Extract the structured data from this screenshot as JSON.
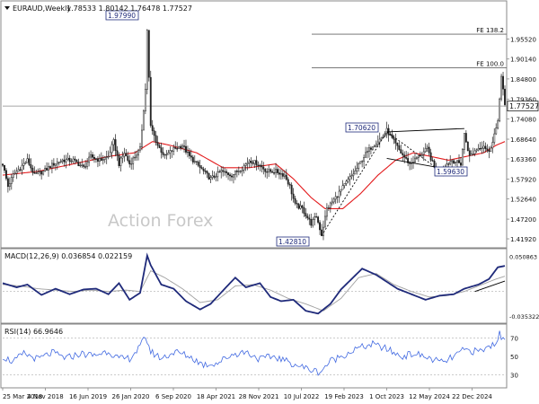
{
  "colors": {
    "background": "#ffffff",
    "frame": "#888888",
    "candle": "#222222",
    "ma": "#e31a1c",
    "macd": "#1f2a7a",
    "signal": "#a0a0a0",
    "rsi": "#4169e1",
    "dotted": "#bcbcbc",
    "trend": "#000000",
    "text": "#111111",
    "watermark": "#c8c8c8"
  },
  "chart_data": [
    {
      "type": "candlestick",
      "title": "EURAUD,Weekly",
      "ohlc_label": "1.78533 1.80142 1.76478 1.77527",
      "watermark": "Action Forex",
      "ylim": [
        1.4,
        2.05
      ],
      "y_ticks": [
        "1.95520",
        "1.90140",
        "1.84800",
        "1.79360",
        "1.74080",
        "1.68640",
        "1.63360",
        "1.57920",
        "1.52640",
        "1.47200",
        "1.41920"
      ],
      "x_ticks": [
        "25 Mar 2018",
        "4 Nov 2018",
        "16 Jun 2019",
        "26 Jan 2020",
        "6 Sep 2020",
        "18 Apr 2021",
        "28 Nov 2021",
        "10 Jul 2022",
        "19 Feb 2023",
        "1 Oct 2023",
        "12 May 2024",
        "22 Dec 2024"
      ],
      "last_price": "1.77527",
      "levels": [
        {
          "label": "FE 138.2",
          "value": 1.968
        },
        {
          "label": "FE 100.0",
          "value": 1.878
        }
      ],
      "annotations": [
        {
          "label": "1.97990",
          "value": 1.9799
        },
        {
          "label": "1.70620",
          "value": 1.7062
        },
        {
          "label": "1.59630",
          "value": 1.5963
        },
        {
          "label": "1.42810",
          "value": 1.4281
        }
      ],
      "series": [
        {
          "name": "EURAUD",
          "price_path": [
            [
              0,
              1.62
            ],
            [
              3,
              1.56
            ],
            [
              6,
              1.59
            ],
            [
              10,
              1.61
            ],
            [
              14,
              1.63
            ],
            [
              18,
              1.59
            ],
            [
              23,
              1.6
            ],
            [
              29,
              1.62
            ],
            [
              34,
              1.63
            ],
            [
              40,
              1.63
            ],
            [
              46,
              1.61
            ],
            [
              50,
              1.64
            ],
            [
              55,
              1.63
            ],
            [
              60,
              1.64
            ],
            [
              63,
              1.68
            ],
            [
              66,
              1.62
            ],
            [
              69,
              1.65
            ],
            [
              72,
              1.62
            ],
            [
              75,
              1.64
            ],
            [
              78,
              1.66
            ],
            [
              81,
              1.82
            ],
            [
              82,
              1.98
            ],
            [
              84,
              1.72
            ],
            [
              88,
              1.67
            ],
            [
              92,
              1.64
            ],
            [
              97,
              1.66
            ],
            [
              102,
              1.67
            ],
            [
              106,
              1.64
            ],
            [
              112,
              1.61
            ],
            [
              118,
              1.58
            ],
            [
              124,
              1.6
            ],
            [
              130,
              1.59
            ],
            [
              136,
              1.61
            ],
            [
              140,
              1.63
            ],
            [
              145,
              1.62
            ],
            [
              150,
              1.6
            ],
            [
              155,
              1.6
            ],
            [
              160,
              1.59
            ],
            [
              163,
              1.56
            ],
            [
              166,
              1.51
            ],
            [
              170,
              1.5
            ],
            [
              175,
              1.46
            ],
            [
              178,
              1.48
            ],
            [
              181,
              1.43
            ],
            [
              184,
              1.5
            ],
            [
              189,
              1.53
            ],
            [
              195,
              1.57
            ],
            [
              200,
              1.6
            ],
            [
              205,
              1.64
            ],
            [
              210,
              1.67
            ],
            [
              215,
              1.69
            ],
            [
              218,
              1.71
            ],
            [
              222,
              1.68
            ],
            [
              226,
              1.65
            ],
            [
              231,
              1.62
            ],
            [
              236,
              1.64
            ],
            [
              241,
              1.66
            ],
            [
              245,
              1.61
            ],
            [
              248,
              1.6
            ],
            [
              252,
              1.62
            ],
            [
              255,
              1.63
            ],
            [
              260,
              1.62
            ],
            [
              262,
              1.7
            ],
            [
              265,
              1.64
            ],
            [
              269,
              1.66
            ],
            [
              273,
              1.67
            ],
            [
              276,
              1.65
            ],
            [
              279,
              1.7
            ],
            [
              281,
              1.73
            ],
            [
              283,
              1.86
            ],
            [
              284,
              1.82
            ],
            [
              285,
              1.775
            ]
          ]
        },
        {
          "name": "MA",
          "price_path": [
            [
              0,
              1.59
            ],
            [
              20,
              1.6
            ],
            [
              40,
              1.62
            ],
            [
              60,
              1.64
            ],
            [
              75,
              1.65
            ],
            [
              85,
              1.68
            ],
            [
              95,
              1.67
            ],
            [
              110,
              1.65
            ],
            [
              125,
              1.61
            ],
            [
              140,
              1.61
            ],
            [
              155,
              1.62
            ],
            [
              165,
              1.58
            ],
            [
              175,
              1.53
            ],
            [
              183,
              1.5
            ],
            [
              193,
              1.5
            ],
            [
              203,
              1.54
            ],
            [
              213,
              1.59
            ],
            [
              223,
              1.63
            ],
            [
              233,
              1.65
            ],
            [
              243,
              1.64
            ],
            [
              253,
              1.63
            ],
            [
              263,
              1.64
            ],
            [
              273,
              1.65
            ],
            [
              280,
              1.67
            ],
            [
              285,
              1.68
            ]
          ]
        }
      ],
      "trendlines": [
        {
          "points": [
            [
              218,
              1.706
            ],
            [
              262,
              1.715
            ]
          ],
          "style": "solid"
        },
        {
          "points": [
            [
              218,
              1.635
            ],
            [
              262,
              1.598
            ]
          ],
          "style": "solid"
        },
        {
          "points": [
            [
              218,
              1.706
            ],
            [
              250,
              1.596
            ]
          ],
          "style": "dotted"
        },
        {
          "points": [
            [
              181,
              1.428
            ],
            [
              218,
              1.706
            ]
          ],
          "style": "dotted"
        }
      ]
    },
    {
      "type": "line",
      "title": "MACD(12,26,9) 0.036854 0.022159",
      "ylim": [
        -0.042,
        0.058
      ],
      "y_ticks": [
        "0.050863",
        "-0.035322"
      ],
      "zero_line": 0,
      "series": [
        {
          "name": "MACD",
          "values_path": [
            [
              0,
              0.012
            ],
            [
              8,
              0.006
            ],
            [
              14,
              0.01
            ],
            [
              22,
              -0.005
            ],
            [
              30,
              0.004
            ],
            [
              38,
              -0.004
            ],
            [
              46,
              0.003
            ],
            [
              53,
              0.004
            ],
            [
              60,
              -0.004
            ],
            [
              66,
              0.012
            ],
            [
              72,
              -0.012
            ],
            [
              78,
              -0.002
            ],
            [
              82,
              0.052
            ],
            [
              84,
              0.038
            ],
            [
              90,
              0.01
            ],
            [
              97,
              0.004
            ],
            [
              104,
              -0.014
            ],
            [
              112,
              -0.026
            ],
            [
              118,
              -0.018
            ],
            [
              126,
              0.004
            ],
            [
              132,
              0.02
            ],
            [
              138,
              0.006
            ],
            [
              146,
              0.012
            ],
            [
              152,
              -0.008
            ],
            [
              158,
              -0.014
            ],
            [
              165,
              -0.012
            ],
            [
              172,
              -0.028
            ],
            [
              179,
              -0.032
            ],
            [
              186,
              -0.018
            ],
            [
              192,
              0.003
            ],
            [
              198,
              0.018
            ],
            [
              204,
              0.033
            ],
            [
              212,
              0.024
            ],
            [
              218,
              0.014
            ],
            [
              224,
              0.004
            ],
            [
              232,
              -0.004
            ],
            [
              240,
              -0.012
            ],
            [
              248,
              -0.006
            ],
            [
              256,
              -0.004
            ],
            [
              262,
              0.004
            ],
            [
              270,
              0.01
            ],
            [
              276,
              0.018
            ],
            [
              281,
              0.035
            ],
            [
              285,
              0.037
            ]
          ]
        },
        {
          "name": "Signal",
          "values_path": [
            [
              0,
              0.01
            ],
            [
              10,
              0.008
            ],
            [
              20,
              0.004
            ],
            [
              30,
              0.002
            ],
            [
              40,
              0.0
            ],
            [
              50,
              0.002
            ],
            [
              60,
              0.0
            ],
            [
              70,
              0.002
            ],
            [
              78,
              0.0
            ],
            [
              84,
              0.03
            ],
            [
              92,
              0.02
            ],
            [
              102,
              0.004
            ],
            [
              112,
              -0.016
            ],
            [
              122,
              -0.012
            ],
            [
              132,
              0.008
            ],
            [
              142,
              0.01
            ],
            [
              152,
              0.002
            ],
            [
              162,
              -0.01
            ],
            [
              172,
              -0.018
            ],
            [
              182,
              -0.028
            ],
            [
              192,
              -0.01
            ],
            [
              202,
              0.02
            ],
            [
              212,
              0.026
            ],
            [
              222,
              0.01
            ],
            [
              232,
              0.0
            ],
            [
              242,
              -0.008
            ],
            [
              252,
              -0.006
            ],
            [
              262,
              0.0
            ],
            [
              272,
              0.01
            ],
            [
              280,
              0.018
            ],
            [
              285,
              0.022
            ]
          ]
        }
      ],
      "trendlines": [
        {
          "points": [
            [
              268,
              0.0
            ],
            [
              285,
              0.015
            ]
          ],
          "style": "solid"
        }
      ]
    },
    {
      "type": "line",
      "title": "RSI(14) 66.9646",
      "ylim": [
        18,
        82
      ],
      "y_ticks": [
        "70",
        "50",
        "30"
      ],
      "reference_lines": [
        70,
        30
      ],
      "series": [
        {
          "name": "RSI",
          "values_path": [
            [
              0,
              50
            ],
            [
              6,
              44
            ],
            [
              12,
              53
            ],
            [
              20,
              47
            ],
            [
              28,
              54
            ],
            [
              36,
              48
            ],
            [
              44,
              53
            ],
            [
              52,
              51
            ],
            [
              60,
              56
            ],
            [
              66,
              47
            ],
            [
              72,
              48
            ],
            [
              78,
              60
            ],
            [
              81,
              72
            ],
            [
              84,
              55
            ],
            [
              90,
              48
            ],
            [
              98,
              55
            ],
            [
              106,
              50
            ],
            [
              114,
              41
            ],
            [
              122,
              43
            ],
            [
              130,
              52
            ],
            [
              138,
              55
            ],
            [
              146,
              47
            ],
            [
              154,
              50
            ],
            [
              162,
              44
            ],
            [
              168,
              40
            ],
            [
              174,
              36
            ],
            [
              180,
              33
            ],
            [
              186,
              45
            ],
            [
              194,
              52
            ],
            [
              202,
              59
            ],
            [
              210,
              63
            ],
            [
              218,
              58
            ],
            [
              226,
              50
            ],
            [
              234,
              53
            ],
            [
              242,
              48
            ],
            [
              250,
              43
            ],
            [
              256,
              50
            ],
            [
              262,
              57
            ],
            [
              270,
              55
            ],
            [
              276,
              60
            ],
            [
              280,
              66
            ],
            [
              282,
              74
            ],
            [
              284,
              68
            ],
            [
              285,
              67
            ]
          ]
        }
      ]
    }
  ]
}
